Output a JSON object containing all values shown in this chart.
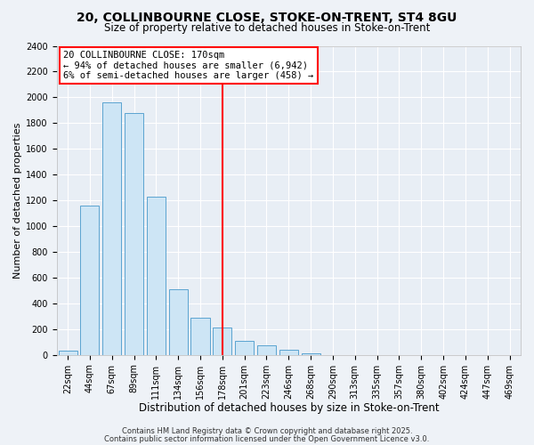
{
  "title": "20, COLLINBOURNE CLOSE, STOKE-ON-TRENT, ST4 8GU",
  "subtitle": "Size of property relative to detached houses in Stoke-on-Trent",
  "xlabel": "Distribution of detached houses by size in Stoke-on-Trent",
  "ylabel": "Number of detached properties",
  "categories": [
    "22sqm",
    "44sqm",
    "67sqm",
    "89sqm",
    "111sqm",
    "134sqm",
    "156sqm",
    "178sqm",
    "201sqm",
    "223sqm",
    "246sqm",
    "268sqm",
    "290sqm",
    "313sqm",
    "335sqm",
    "357sqm",
    "380sqm",
    "402sqm",
    "424sqm",
    "447sqm",
    "469sqm"
  ],
  "values": [
    35,
    1160,
    1960,
    1880,
    1230,
    510,
    290,
    210,
    110,
    75,
    40,
    10,
    0,
    0,
    0,
    0,
    0,
    0,
    0,
    0,
    0
  ],
  "bar_color": "#cde5f5",
  "bar_edge_color": "#5ba3d0",
  "vline_x_index": 7,
  "vline_color": "red",
  "annotation_line1": "20 COLLINBOURNE CLOSE: 170sqm",
  "annotation_line2": "← 94% of detached houses are smaller (6,942)",
  "annotation_line3": "6% of semi-detached houses are larger (458) →",
  "annotation_box_color": "white",
  "annotation_box_edge": "red",
  "ylim": [
    0,
    2400
  ],
  "yticks": [
    0,
    200,
    400,
    600,
    800,
    1000,
    1200,
    1400,
    1600,
    1800,
    2000,
    2200,
    2400
  ],
  "footer1": "Contains HM Land Registry data © Crown copyright and database right 2025.",
  "footer2": "Contains public sector information licensed under the Open Government Licence v3.0.",
  "bg_color": "#eef2f7",
  "plot_bg_color": "#e8eef5",
  "grid_color": "#ffffff",
  "title_fontsize": 10,
  "subtitle_fontsize": 8.5,
  "xlabel_fontsize": 8.5,
  "ylabel_fontsize": 8,
  "tick_fontsize": 7,
  "footer_fontsize": 6
}
